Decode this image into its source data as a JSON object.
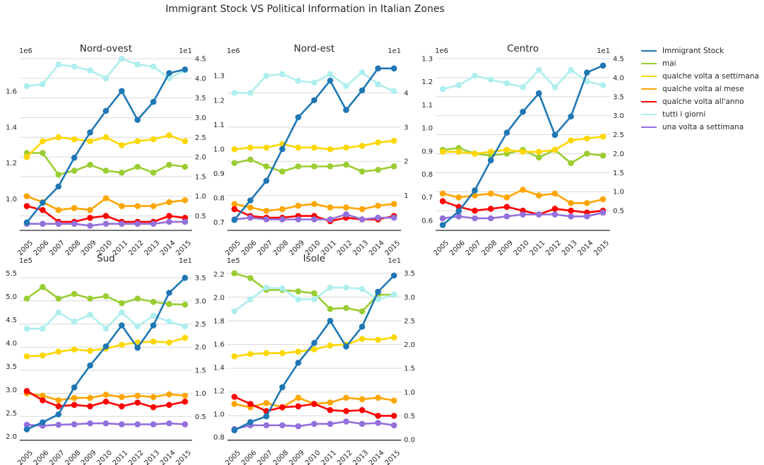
{
  "title": "Immigrant Stock VS Political Information in Italian Zones",
  "colors": {
    "Immigrant Stock": "#1f77b4",
    "mai": "#9acd32",
    "qualche volta a settimana": "#ffd700",
    "qualche volta al mese": "#ffa500",
    "qualche volta all'anno": "#ff0000",
    "tutti i giorni": "#afeeee",
    "una volta a settimana": "#9370db"
  },
  "legend": [
    "Immigrant Stock",
    "mai",
    "qualche volta a settimana",
    "qualche volta al mese",
    "qualche volta all'anno",
    "tutti i giorni",
    "una volta a settimana"
  ],
  "chart_data": [
    {
      "type": "line",
      "title": "Nord-ovest",
      "x": [
        "2005",
        "2006",
        "2007",
        "2008",
        "2009",
        "2010",
        "2011",
        "2012",
        "2013",
        "2014",
        "2015"
      ],
      "left_axis": {
        "ylim": [
          0.83,
          1.78
        ],
        "ticks": [
          1.0,
          1.2,
          1.4,
          1.6
        ],
        "tick_labels": [
          "1.0",
          "1.2",
          "1.4",
          "1.6"
        ],
        "offset_label": "1e6"
      },
      "right_axis": {
        "ylim": [
          0.15,
          4.5
        ],
        "ticks": [
          0.5,
          1.0,
          1.5,
          2.0,
          2.5,
          3.0,
          3.5,
          4.0,
          4.5
        ],
        "tick_labels": [
          "0.5",
          "1.0",
          "1.5",
          "2.0",
          "2.5",
          "3.0",
          "3.5",
          "4.0",
          "4.5"
        ],
        "offset_label": "1e1"
      },
      "series": [
        {
          "name": "Immigrant Stock",
          "axis": "left",
          "values": [
            0.87,
            0.98,
            1.07,
            1.23,
            1.37,
            1.49,
            1.6,
            1.44,
            1.54,
            1.7,
            1.72
          ]
        },
        {
          "name": "mai",
          "axis": "right",
          "values": [
            2.1,
            2.1,
            1.55,
            1.65,
            1.8,
            1.65,
            1.6,
            1.75,
            1.6,
            1.8,
            1.75
          ]
        },
        {
          "name": "qualche volta a settimana",
          "axis": "right",
          "values": [
            2.0,
            2.4,
            2.5,
            2.45,
            2.4,
            2.5,
            2.3,
            2.4,
            2.45,
            2.55,
            2.4
          ]
        },
        {
          "name": "qualche volta al mese",
          "axis": "right",
          "values": [
            1.0,
            0.85,
            0.65,
            0.7,
            0.65,
            0.95,
            0.75,
            0.75,
            0.75,
            0.85,
            0.9
          ]
        },
        {
          "name": "qualche volta all'anno",
          "axis": "right",
          "values": [
            0.75,
            0.65,
            0.35,
            0.35,
            0.45,
            0.5,
            0.35,
            0.35,
            0.35,
            0.5,
            0.45
          ]
        },
        {
          "name": "tutti i giorni",
          "axis": "right",
          "values": [
            3.8,
            3.85,
            4.35,
            4.3,
            4.2,
            4.0,
            4.5,
            4.35,
            4.3,
            4.0,
            4.2
          ]
        },
        {
          "name": "una volta a settimana",
          "axis": "right",
          "values": [
            0.3,
            0.3,
            0.3,
            0.3,
            0.25,
            0.3,
            0.3,
            0.3,
            0.3,
            0.35,
            0.35
          ]
        }
      ]
    },
    {
      "type": "line",
      "title": "Nord-est",
      "x": [
        "2005",
        "2006",
        "2007",
        "2008",
        "2009",
        "2010",
        "2011",
        "2012",
        "2013",
        "2014",
        "2015"
      ],
      "left_axis": {
        "ylim": [
          0.67,
          1.37
        ],
        "ticks": [
          0.7,
          0.8,
          0.9,
          1.0,
          1.1,
          1.2,
          1.3
        ],
        "tick_labels": [
          "0.7",
          "0.8",
          "0.9",
          "1.0",
          "1.1",
          "1.2",
          "1.3"
        ],
        "offset_label": "1e6"
      },
      "right_axis": {
        "ylim": [
          0.0,
          5.0
        ],
        "ticks": [
          1,
          2,
          3,
          4
        ],
        "tick_labels": [
          "1",
          "2",
          "3",
          "4"
        ],
        "offset_label": "1e1"
      },
      "series": [
        {
          "name": "Immigrant Stock",
          "axis": "left",
          "values": [
            0.71,
            0.79,
            0.87,
            1.0,
            1.13,
            1.2,
            1.28,
            1.16,
            1.24,
            1.33,
            1.33
          ]
        },
        {
          "name": "mai",
          "axis": "right",
          "values": [
            1.95,
            2.05,
            1.85,
            1.7,
            1.85,
            1.85,
            1.85,
            1.9,
            1.7,
            1.75,
            1.85
          ]
        },
        {
          "name": "qualche volta a settimana",
          "axis": "right",
          "values": [
            2.35,
            2.4,
            2.4,
            2.5,
            2.4,
            2.4,
            2.35,
            2.4,
            2.45,
            2.55,
            2.6
          ]
        },
        {
          "name": "qualche volta al mese",
          "axis": "right",
          "values": [
            0.75,
            0.65,
            0.55,
            0.6,
            0.7,
            0.75,
            0.65,
            0.65,
            0.6,
            0.7,
            0.75
          ]
        },
        {
          "name": "qualche volta all'anno",
          "axis": "right",
          "values": [
            0.6,
            0.4,
            0.35,
            0.35,
            0.4,
            0.4,
            0.25,
            0.35,
            0.3,
            0.3,
            0.4
          ]
        },
        {
          "name": "tutti i giorni",
          "axis": "right",
          "values": [
            4.0,
            4.0,
            4.5,
            4.55,
            4.35,
            4.3,
            4.55,
            4.2,
            4.6,
            4.25,
            4.05
          ]
        },
        {
          "name": "una volta a settimana",
          "axis": "right",
          "values": [
            0.3,
            0.35,
            0.3,
            0.3,
            0.3,
            0.3,
            0.3,
            0.45,
            0.3,
            0.35,
            0.35
          ]
        }
      ]
    },
    {
      "type": "line",
      "title": "Centro",
      "x": [
        "2005",
        "2006",
        "2007",
        "2008",
        "2009",
        "2010",
        "2011",
        "2012",
        "2013",
        "2014",
        "2015"
      ],
      "left_axis": {
        "ylim": [
          0.56,
          1.3
        ],
        "ticks": [
          0.6,
          0.7,
          0.8,
          0.9,
          1.0,
          1.1,
          1.2,
          1.3
        ],
        "tick_labels": [
          "0.6",
          "0.7",
          "0.8",
          "0.9",
          "1.0",
          "1.1",
          "1.2",
          "1.3"
        ],
        "offset_label": "1e6"
      },
      "right_axis": {
        "ylim": [
          0.0,
          4.5
        ],
        "ticks": [
          0.5,
          1.0,
          1.5,
          2.0,
          2.5,
          3.0,
          3.5,
          4.0,
          4.5
        ],
        "tick_labels": [
          "0.5",
          "1.0",
          "1.5",
          "2.0",
          "2.5",
          "3.0",
          "3.5",
          "4.0",
          "4.5"
        ],
        "offset_label": "1e1"
      },
      "series": [
        {
          "name": "Immigrant Stock",
          "axis": "left",
          "values": [
            0.58,
            0.64,
            0.73,
            0.86,
            0.98,
            1.07,
            1.15,
            0.97,
            1.05,
            1.24,
            1.27
          ]
        },
        {
          "name": "mai",
          "axis": "right",
          "values": [
            2.1,
            2.15,
            2.0,
            1.95,
            2.0,
            2.1,
            1.9,
            2.1,
            1.75,
            2.0,
            1.95
          ]
        },
        {
          "name": "qualche volta a settimana",
          "axis": "right",
          "values": [
            2.05,
            2.05,
            2.0,
            2.05,
            2.1,
            2.05,
            2.05,
            2.1,
            2.35,
            2.4,
            2.45
          ]
        },
        {
          "name": "qualche volta al mese",
          "axis": "right",
          "values": [
            0.95,
            0.85,
            0.9,
            0.95,
            0.85,
            1.05,
            0.9,
            0.95,
            0.7,
            0.7,
            0.8
          ]
        },
        {
          "name": "qualche volta all'anno",
          "axis": "right",
          "values": [
            0.75,
            0.6,
            0.5,
            0.55,
            0.6,
            0.5,
            0.4,
            0.55,
            0.5,
            0.45,
            0.5
          ]
        },
        {
          "name": "tutti i giorni",
          "axis": "right",
          "values": [
            3.7,
            3.8,
            4.05,
            3.95,
            3.85,
            3.75,
            4.2,
            3.75,
            4.2,
            3.9,
            3.8
          ]
        },
        {
          "name": "una volta a settimana",
          "axis": "right",
          "values": [
            0.3,
            0.35,
            0.3,
            0.3,
            0.35,
            0.4,
            0.4,
            0.4,
            0.35,
            0.35,
            0.45
          ]
        }
      ]
    },
    {
      "type": "line",
      "title": "Sud",
      "x": [
        "2005",
        "2006",
        "2007",
        "2008",
        "2009",
        "2010",
        "2011",
        "2012",
        "2013",
        "2014",
        "2015"
      ],
      "left_axis": {
        "ylim": [
          1.93,
          5.6
        ],
        "ticks": [
          2.0,
          2.5,
          3.0,
          3.5,
          4.0,
          4.5,
          5.0,
          5.5
        ],
        "tick_labels": [
          "2.0",
          "2.5",
          "3.0",
          "3.5",
          "4.0",
          "4.5",
          "5.0",
          "5.5"
        ],
        "offset_label": "1e5"
      },
      "right_axis": {
        "ylim": [
          0.0,
          3.7
        ],
        "ticks": [
          0.5,
          1.0,
          1.5,
          2.0,
          2.5,
          3.0,
          3.5
        ],
        "tick_labels": [
          "0.5",
          "1.0",
          "1.5",
          "2.0",
          "2.5",
          "3.0",
          "3.5"
        ],
        "offset_label": "1e1"
      },
      "series": [
        {
          "name": "Immigrant Stock",
          "axis": "left",
          "values": [
            2.15,
            2.3,
            2.47,
            3.05,
            3.52,
            3.93,
            4.38,
            3.9,
            4.38,
            5.08,
            5.4
          ]
        },
        {
          "name": "mai",
          "axis": "right",
          "values": [
            3.05,
            3.3,
            3.05,
            3.15,
            3.05,
            3.1,
            2.95,
            3.05,
            2.98,
            2.93,
            2.92
          ]
        },
        {
          "name": "qualche volta a settimana",
          "axis": "right",
          "values": [
            1.8,
            1.82,
            1.9,
            1.95,
            1.92,
            1.97,
            2.05,
            2.1,
            2.12,
            2.1,
            2.2
          ]
        },
        {
          "name": "qualche volta al mese",
          "axis": "right",
          "values": [
            1.0,
            0.95,
            0.85,
            0.9,
            0.9,
            0.97,
            0.92,
            0.95,
            0.92,
            0.98,
            0.95
          ]
        },
        {
          "name": "qualche volta all'anno",
          "axis": "right",
          "values": [
            1.05,
            0.85,
            0.72,
            0.75,
            0.72,
            0.82,
            0.72,
            0.8,
            0.7,
            0.75,
            0.82
          ]
        },
        {
          "name": "tutti i giorni",
          "axis": "right",
          "values": [
            2.4,
            2.4,
            2.75,
            2.55,
            2.7,
            2.4,
            2.75,
            2.45,
            2.68,
            2.55,
            2.45
          ]
        },
        {
          "name": "una volta a settimana",
          "axis": "right",
          "values": [
            0.32,
            0.3,
            0.32,
            0.33,
            0.35,
            0.35,
            0.33,
            0.33,
            0.33,
            0.35,
            0.33
          ]
        }
      ]
    },
    {
      "type": "line",
      "title": "Isole",
      "x": [
        "2005",
        "2006",
        "2007",
        "2008",
        "2009",
        "2010",
        "2011",
        "2012",
        "2013",
        "2014",
        "2015"
      ],
      "left_axis": {
        "ylim": [
          0.78,
          2.25
        ],
        "ticks": [
          0.8,
          1.0,
          1.2,
          1.4,
          1.6,
          1.8,
          2.0,
          2.2
        ],
        "tick_labels": [
          "0.8",
          "1.0",
          "1.2",
          "1.4",
          "1.6",
          "1.8",
          "2.0",
          "2.2"
        ],
        "offset_label": "1e5"
      },
      "right_axis": {
        "ylim": [
          0.0,
          3.6
        ],
        "ticks": [
          0.0,
          0.5,
          1.0,
          1.5,
          2.0,
          2.5,
          3.0,
          3.5
        ],
        "tick_labels": [
          "0.0",
          "0.5",
          "1.0",
          "1.5",
          "2.0",
          "2.5",
          "3.0",
          "3.5"
        ],
        "offset_label": "1e1"
      },
      "series": [
        {
          "name": "Immigrant Stock",
          "axis": "left",
          "values": [
            0.86,
            0.93,
            0.98,
            1.23,
            1.44,
            1.61,
            1.8,
            1.58,
            1.75,
            2.05,
            2.19
          ]
        },
        {
          "name": "mai",
          "axis": "right",
          "values": [
            3.5,
            3.4,
            3.15,
            3.15,
            3.12,
            3.08,
            2.75,
            2.77,
            2.7,
            3.05,
            3.05
          ]
        },
        {
          "name": "qualche volta a settimana",
          "axis": "right",
          "values": [
            1.75,
            1.8,
            1.82,
            1.82,
            1.85,
            1.9,
            1.98,
            2.0,
            2.12,
            2.1,
            2.15
          ]
        },
        {
          "name": "qualche volta al mese",
          "axis": "right",
          "values": [
            0.75,
            0.68,
            0.77,
            0.68,
            0.88,
            0.75,
            0.78,
            0.88,
            0.85,
            0.88,
            0.82
          ]
        },
        {
          "name": "qualche volta all'anno",
          "axis": "right",
          "values": [
            0.9,
            0.75,
            0.6,
            0.68,
            0.7,
            0.75,
            0.62,
            0.6,
            0.62,
            0.5,
            0.5
          ]
        },
        {
          "name": "tutti i giorni",
          "axis": "right",
          "values": [
            2.7,
            2.95,
            3.2,
            3.18,
            2.95,
            2.95,
            3.2,
            3.2,
            3.17,
            2.95,
            3.05
          ]
        },
        {
          "name": "una volta a settimana",
          "axis": "right",
          "values": [
            0.22,
            0.3,
            0.3,
            0.3,
            0.28,
            0.33,
            0.33,
            0.38,
            0.33,
            0.35,
            0.3
          ]
        }
      ]
    }
  ]
}
